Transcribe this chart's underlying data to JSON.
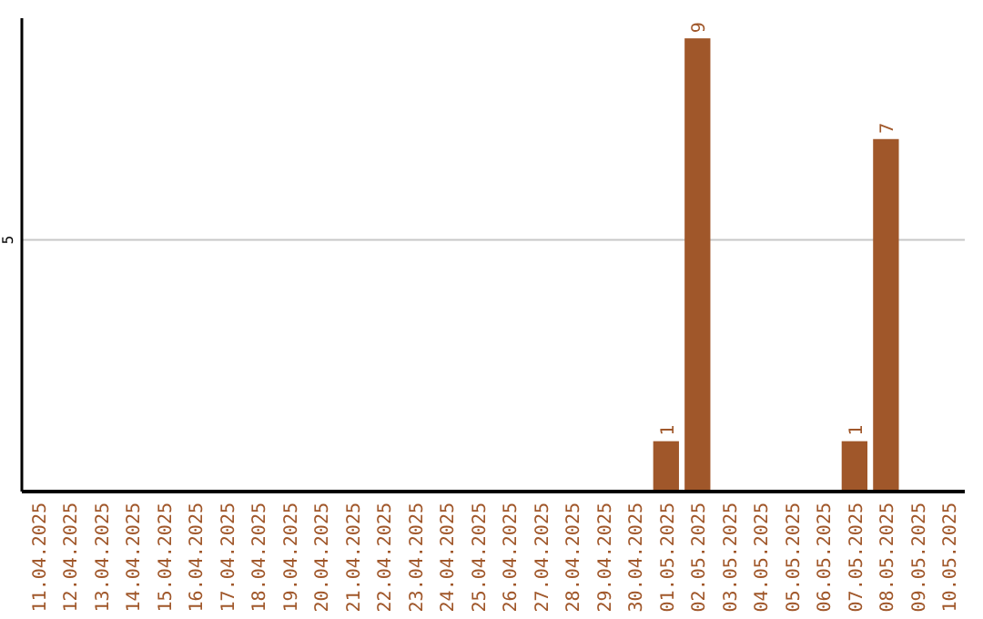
{
  "chart_data": {
    "type": "bar",
    "categories": [
      "11.04.2025",
      "12.04.2025",
      "13.04.2025",
      "14.04.2025",
      "15.04.2025",
      "16.04.2025",
      "17.04.2025",
      "18.04.2025",
      "19.04.2025",
      "20.04.2025",
      "21.04.2025",
      "22.04.2025",
      "23.04.2025",
      "24.04.2025",
      "25.04.2025",
      "26.04.2025",
      "27.04.2025",
      "28.04.2025",
      "29.04.2025",
      "30.04.2025",
      "01.05.2025",
      "02.05.2025",
      "03.05.2025",
      "04.05.2025",
      "05.05.2025",
      "06.05.2025",
      "07.05.2025",
      "08.05.2025",
      "09.05.2025",
      "10.05.2025"
    ],
    "values": [
      null,
      null,
      null,
      null,
      null,
      null,
      null,
      null,
      null,
      null,
      null,
      null,
      null,
      null,
      null,
      null,
      null,
      null,
      null,
      null,
      1,
      9,
      null,
      null,
      null,
      null,
      1,
      7,
      null,
      null
    ],
    "data_labels": true,
    "color": "#a0572a",
    "ylim": [
      0,
      9.4
    ],
    "yticks": [
      5
    ],
    "grid": "y"
  }
}
